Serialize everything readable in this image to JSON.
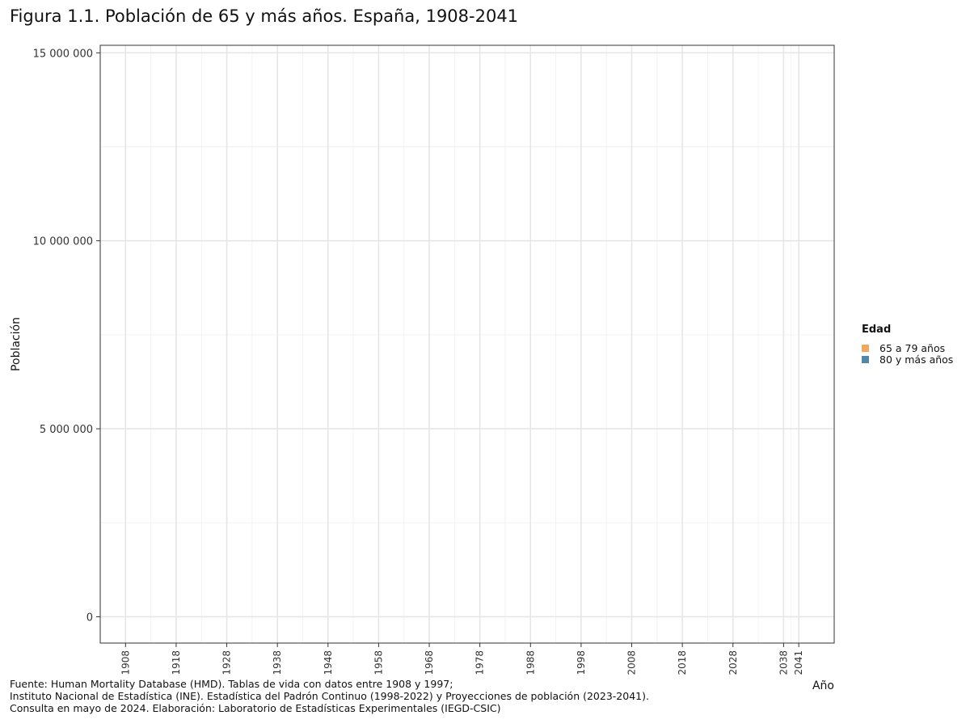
{
  "chart_data": {
    "type": "area",
    "title": "Figura 1.1. Población de 65 y más años. España, 1908-2041",
    "xlabel": "Año",
    "ylabel": "Población",
    "xlim": [
      1903,
      2048
    ],
    "ylim": [
      -700000,
      15200000
    ],
    "x_ticks": [
      1908,
      1918,
      1928,
      1938,
      1948,
      1958,
      1968,
      1978,
      1988,
      1998,
      2008,
      2018,
      2028,
      2038,
      2041
    ],
    "y_ticks": [
      {
        "value": 0,
        "label": "0"
      },
      {
        "value": 5000000,
        "label": "5 000 000"
      },
      {
        "value": 10000000,
        "label": "10 000 000"
      },
      {
        "value": 15000000,
        "label": "15 000 000"
      }
    ],
    "grid": true,
    "legend": {
      "title": "Edad",
      "position": "right",
      "items": [
        {
          "label": "65 a 79 años",
          "color": "#f0a860"
        },
        {
          "label": "80 y más años",
          "color": "#4f87a6"
        }
      ]
    },
    "series": [
      {
        "name": "65 a 79 años",
        "values": []
      },
      {
        "name": "80 y más años",
        "values": []
      }
    ],
    "caption": [
      "Fuente: Human Mortality Database (HMD). Tablas de vida con datos entre 1908 y 1997;",
      "Instituto Nacional de Estadística (INE). Estadística del Padrón Continuo (1998-2022) y Proyecciones de población (2023-2041).",
      "Consulta en mayo de 2024. Elaboración: Laboratorio de Estadísticas Experimentales (IEGD-CSIC)"
    ]
  }
}
